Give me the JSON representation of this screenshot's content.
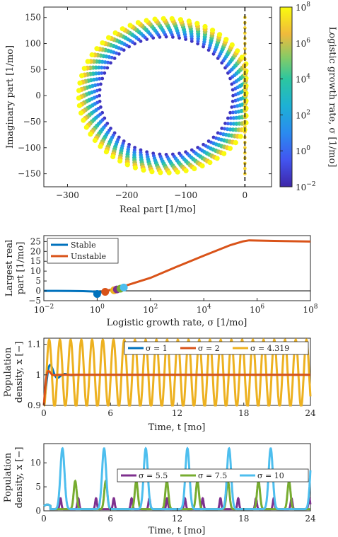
{
  "chart_data": [
    {
      "id": "eigs",
      "type": "scatter",
      "xlabel": "Real part [1/mo]",
      "ylabel": "Imaginary part [1/mo]",
      "xlim": [
        -340,
        45
      ],
      "ylim": [
        -175,
        170
      ],
      "xticks": [
        -300,
        -200,
        -100,
        0
      ],
      "xtick_labels": [
        "−300",
        "−200",
        "−100",
        "0"
      ],
      "yticks": [
        -150,
        -100,
        -50,
        0,
        50,
        100,
        150
      ],
      "ytick_labels": [
        "−150",
        "−100",
        "−50",
        "0",
        "50",
        "100",
        "150"
      ],
      "circle_center": [
        -133,
        0
      ],
      "circle_radius": 113,
      "reference_line_x": 0,
      "colorbar": {
        "label": "Logistic growth rate, σ [1/mo]",
        "scale": "log",
        "range": [
          0.01,
          100000000
        ],
        "tick_bases": [
          "10",
          "10",
          "10",
          "10",
          "10",
          "10"
        ],
        "tick_exponents": [
          "−2",
          "0",
          "2",
          "4",
          "6",
          "8"
        ]
      }
    },
    {
      "id": "largest_real",
      "type": "line",
      "xscale": "log",
      "xlim": [
        0.01,
        100000000
      ],
      "ylim": [
        -5,
        28
      ],
      "xlabel": "Logistic growth rate, σ [1/mo]",
      "ylabel": [
        "Largest real",
        "part [1/mo]"
      ],
      "xtick_bases": [
        "10",
        "10",
        "10",
        "10",
        "10",
        "10"
      ],
      "xtick_exponents": [
        "−2",
        "0",
        "2",
        "4",
        "6",
        "8"
      ],
      "yticks": [
        -5,
        0,
        5,
        10,
        15,
        20,
        25
      ],
      "ytick_labels": [
        "−5",
        "0",
        "5",
        "10",
        "15",
        "20",
        "25"
      ],
      "series": [
        {
          "name": "Stable",
          "color": "#0072BD",
          "x": [
            0.01,
            0.03,
            0.1,
            0.3,
            0.6,
            1,
            1.5,
            2
          ],
          "y": [
            -0.005,
            -0.015,
            -0.05,
            -0.15,
            -0.3,
            -0.5,
            -0.75,
            -1.0
          ]
        },
        {
          "name": "Unstable",
          "color": "#D95319",
          "x": [
            2,
            4.319,
            10,
            100,
            1000,
            10000,
            100000,
            300000,
            500000,
            1000000,
            10000000,
            100000000
          ],
          "y": [
            0.0,
            0.8,
            2.3,
            6.6,
            12.3,
            17.8,
            23.2,
            25.1,
            25.6,
            25.5,
            25.2,
            25.0
          ]
        }
      ],
      "markers": [
        {
          "x": 1,
          "y": -1.6,
          "color": "#0072BD"
        },
        {
          "x": 2,
          "y": -0.5,
          "color": "#D95319"
        },
        {
          "x": 4.319,
          "y": 0.3,
          "color": "#EDB120"
        },
        {
          "x": 5.5,
          "y": 0.7,
          "color": "#7E2F8E"
        },
        {
          "x": 7.5,
          "y": 1.1,
          "color": "#77AC30"
        },
        {
          "x": 10,
          "y": 1.7,
          "color": "#4DBEEE"
        }
      ]
    },
    {
      "id": "pop_a",
      "type": "line",
      "xlim": [
        0,
        24
      ],
      "ylim": [
        0.9,
        1.12
      ],
      "xlabel": "Time, t [mo]",
      "ylabel": [
        "Population",
        "density, x [−]"
      ],
      "xticks": [
        0,
        6,
        12,
        18,
        24
      ],
      "yticks": [
        0.9,
        1,
        1.1
      ],
      "ytick_labels": [
        "0.9",
        "1",
        "1.1"
      ],
      "series": [
        {
          "name": "σ = 1",
          "color": "#0072BD",
          "period": 1.3,
          "amplitude": 0.1,
          "decay": 1.2,
          "equilibrium": 1
        },
        {
          "name": "σ = 2",
          "color": "#D95319",
          "period": 1.05,
          "amplitude": 0.1,
          "decay": 0.5,
          "equilibrium": 1
        },
        {
          "name": "σ = 4.319",
          "color": "#EDB120",
          "period": 0.965,
          "amplitude": 0.11,
          "decay": 0,
          "equilibrium": 1.005
        }
      ]
    },
    {
      "id": "pop_b",
      "type": "line",
      "xlim": [
        0,
        24
      ],
      "ylim": [
        0,
        14
      ],
      "xlabel": "Time, t [mo]",
      "ylabel": [
        "Population",
        "density, x [−]"
      ],
      "xticks": [
        0,
        6,
        12,
        18,
        24
      ],
      "yticks": [
        0,
        5,
        10
      ],
      "ytick_labels": [
        "0",
        "5",
        "10"
      ],
      "series": [
        {
          "name": "σ = 5.5",
          "color": "#7E2F8E",
          "period": 1.6,
          "peak": 2.6
        },
        {
          "name": "σ = 7.5",
          "color": "#77AC30",
          "period": 2.75,
          "peak": 6.2
        },
        {
          "name": "σ = 10",
          "color": "#4DBEEE",
          "period": 3.75,
          "peak": 13.0
        }
      ]
    }
  ]
}
